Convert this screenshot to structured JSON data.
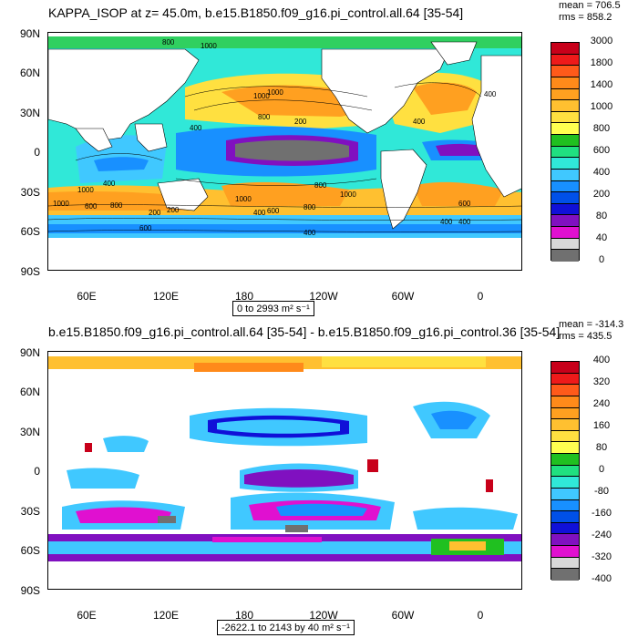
{
  "panel1": {
    "title": "KAPPA_ISOP at z=  45.0m, b.e15.B1850.f09_g16.pi_control.all.64 [35-54]",
    "stats_mean": "mean = 706.5",
    "stats_rms": "rms = 858.2",
    "range_label": "0 to 2993 m² s⁻¹",
    "colorbar": {
      "colors": [
        "#c8001a",
        "#ee1a1a",
        "#ff5a1a",
        "#ff8a1a",
        "#ffa020",
        "#ffc030",
        "#ffe040",
        "#ffff50",
        "#20c020",
        "#20e080",
        "#30e8d8",
        "#40c8ff",
        "#1890ff",
        "#0050e8",
        "#1010d8",
        "#8010c0",
        "#e010d0",
        "#d8d8d8",
        "#707070"
      ],
      "labels": [
        "3000",
        "1800",
        "1400",
        "1000",
        "800",
        "600",
        "400",
        "200",
        "80",
        "40",
        "0"
      ]
    },
    "contour_labels": [
      "800",
      "1000",
      "1000",
      "800",
      "400",
      "200",
      "400",
      "1000",
      "1000",
      "800",
      "1000",
      "600",
      "400",
      "800",
      "400",
      "1000",
      "400",
      "600",
      "200",
      "400",
      "400",
      "600",
      "1000",
      "800",
      "600",
      "200",
      "400"
    ]
  },
  "panel2": {
    "title": "b.e15.B1850.f09_g16.pi_control.all.64 [35-54] - b.e15.B1850.f09_g16.pi_control.36 [35-54]",
    "stats_mean": "mean = -314.3",
    "stats_rms": "rms = 435.5",
    "range_label": "-2622.1 to 2143 by 40 m² s⁻¹",
    "colorbar": {
      "colors": [
        "#c8001a",
        "#ee1a1a",
        "#ff5a1a",
        "#ff8a1a",
        "#ffa020",
        "#ffc030",
        "#ffe040",
        "#ffff50",
        "#20c020",
        "#20e080",
        "#30e8d8",
        "#40c8ff",
        "#1890ff",
        "#0050e8",
        "#1010d8",
        "#8010c0",
        "#e010d0",
        "#d8d8d8",
        "#707070"
      ],
      "labels": [
        "400",
        "320",
        "240",
        "160",
        "80",
        "0",
        "-80",
        "-160",
        "-240",
        "-320",
        "-400"
      ]
    }
  },
  "axes": {
    "lat_labels": [
      "90N",
      "60N",
      "30N",
      "0",
      "30S",
      "60S",
      "90S"
    ],
    "lon_labels": [
      "60E",
      "120E",
      "180",
      "120W",
      "60W",
      "0"
    ]
  },
  "chart_data": [
    {
      "type": "heatmap",
      "title": "KAPPA_ISOP at z=  45.0m, b.e15.B1850.f09_g16.pi_control.all.64 [35-54]",
      "xlabel": "",
      "ylabel": "",
      "x_ticks": [
        "60E",
        "120E",
        "180",
        "120W",
        "60W",
        "0"
      ],
      "y_ticks": [
        "90N",
        "60N",
        "30N",
        "0",
        "30S",
        "60S",
        "90S"
      ],
      "levels": [
        0,
        40,
        80,
        200,
        400,
        600,
        800,
        1000,
        1400,
        1800,
        3000
      ],
      "mean": 706.5,
      "rms": 858.2,
      "range": [
        0,
        2993
      ],
      "units": "m² s⁻¹",
      "grid": false,
      "legend": "right colorbar"
    },
    {
      "type": "heatmap",
      "title": "b.e15.B1850.f09_g16.pi_control.all.64 [35-54] - b.e15.B1850.f09_g16.pi_control.36 [35-54]",
      "xlabel": "",
      "ylabel": "",
      "x_ticks": [
        "60E",
        "120E",
        "180",
        "120W",
        "60W",
        "0"
      ],
      "y_ticks": [
        "90N",
        "60N",
        "30N",
        "0",
        "30S",
        "60S",
        "90S"
      ],
      "levels": [
        -400,
        -320,
        -240,
        -160,
        -80,
        0,
        80,
        160,
        240,
        320,
        400
      ],
      "mean": -314.3,
      "rms": 435.5,
      "range": [
        -2622.1,
        2143
      ],
      "interval": 40,
      "units": "m² s⁻¹",
      "grid": false,
      "legend": "right colorbar"
    }
  ]
}
